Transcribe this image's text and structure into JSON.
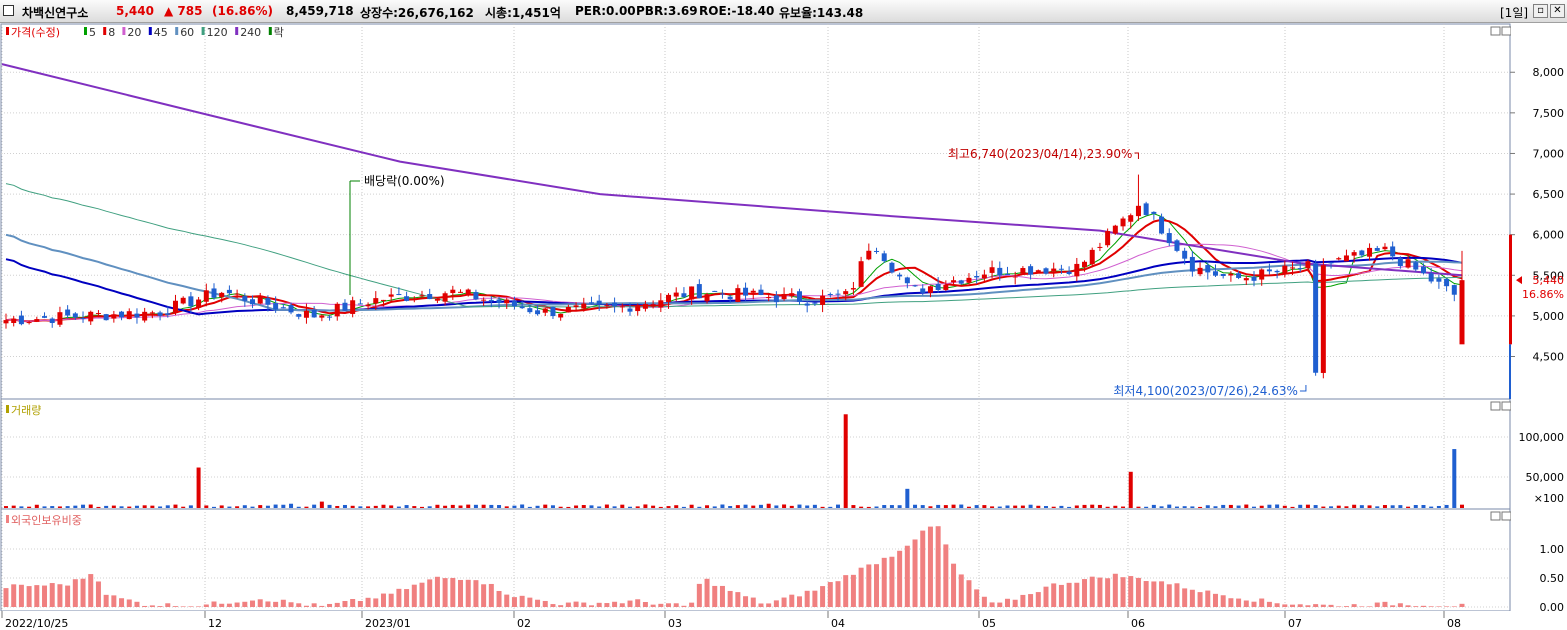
{
  "header": {
    "stock_name": "차백신연구소",
    "price": "5,440",
    "change": "▲ 785",
    "change_pct": "(16.86%)",
    "volume": "8,459,718",
    "listed_shares": "상장수:26,676,162",
    "market_cap": "시총:1,451억",
    "per": "PER:0.00",
    "pbr": "PBR:3.69",
    "roe": "ROE:-18.40",
    "reserve_ratio": "유보율:143.48",
    "period": "[1일]",
    "colors": {
      "up": "#e00000",
      "down": "#1f5fd0",
      "text": "#000000"
    }
  },
  "price_panel": {
    "legend": [
      {
        "label": "가격(수정)",
        "color": "#e00000"
      },
      {
        "label": "5",
        "color": "#00a000"
      },
      {
        "label": "8",
        "color": "#e00000"
      },
      {
        "label": "20",
        "color": "#d060d0"
      },
      {
        "label": "45",
        "color": "#0000c0"
      },
      {
        "label": "60",
        "color": "#6090c0"
      },
      {
        "label": "120",
        "color": "#40a080"
      },
      {
        "label": "240",
        "color": "#8030c0"
      },
      {
        "label": "락",
        "color": "#008000"
      }
    ],
    "y_ticks": [
      "8,000",
      "7,500",
      "7,000",
      "6,500",
      "6,000",
      "5,500",
      "5,000",
      "4,500"
    ],
    "current_price_label": "5,440",
    "current_pct_label": "16.86%",
    "annotation_high": "최고6,740(2023/04/14),23.90%",
    "annotation_low": "최저4,100(2023/07/26),24.63%",
    "annotation_dividend": "배당락(0.00%)"
  },
  "volume_panel": {
    "title": "거래량",
    "y_ticks": [
      "100,000",
      "50,000"
    ],
    "unit": "×100"
  },
  "foreign_panel": {
    "title": "외국인보유비중",
    "y_ticks": [
      "1.00",
      "0.50",
      "0.00"
    ]
  },
  "x_axis": {
    "labels": [
      "2022/10/25",
      "12",
      "2023/01",
      "02",
      "03",
      "04",
      "05",
      "06",
      "07",
      "08"
    ]
  },
  "chart_data": {
    "type": "candlestick",
    "price_range": [
      4100,
      8200
    ],
    "volume_range_x100": [
      0,
      140000
    ],
    "foreign_range": [
      0,
      1.5
    ],
    "key_points": [
      {
        "date": "2023/04/14",
        "label": "최고",
        "value": 6740
      },
      {
        "date": "2023/07/26",
        "label": "최저",
        "value": 4100
      }
    ],
    "last_close": 5440
  }
}
